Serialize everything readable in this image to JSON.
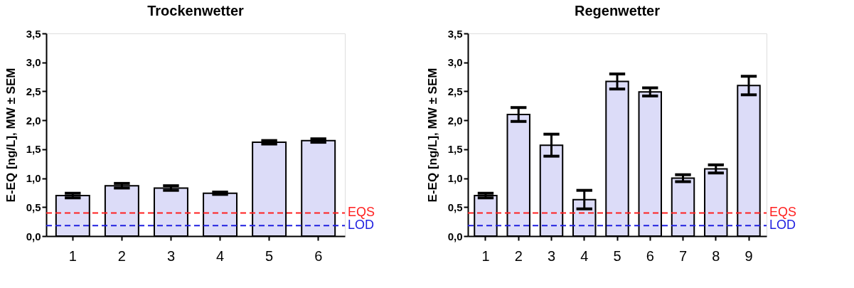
{
  "chart_data": [
    {
      "type": "bar",
      "title": "Trockenwetter",
      "ylabel": "E-EQ [ng/L], MW ± SEM",
      "categories": [
        "1",
        "2",
        "3",
        "4",
        "5",
        "6"
      ],
      "values": [
        0.7,
        0.87,
        0.83,
        0.74,
        1.62,
        1.65
      ],
      "errors": [
        0.04,
        0.04,
        0.04,
        0.02,
        0.03,
        0.03
      ],
      "color": "#dcdcf8",
      "ylim": [
        0,
        3.5
      ],
      "yticks": [
        {
          "value": 0,
          "label": "0,0"
        },
        {
          "value": 0.5,
          "label": "0,5"
        },
        {
          "value": 1,
          "label": "1,0"
        },
        {
          "value": 1.5,
          "label": "1,5"
        },
        {
          "value": 2,
          "label": "2,0"
        },
        {
          "value": 2.5,
          "label": "2,5"
        },
        {
          "value": 3,
          "label": "3,0"
        },
        {
          "value": 3.5,
          "label": "3,5"
        }
      ],
      "ref_lines": [
        {
          "axis": "y",
          "value": 0.4,
          "label": "EQS",
          "color": "#ff2020",
          "line_style": "dashed"
        },
        {
          "axis": "y",
          "value": 0.18,
          "label": "LOD",
          "color": "#2020e0",
          "line_style": "dashed"
        }
      ],
      "grid": false
    },
    {
      "type": "bar",
      "title": "Regenwetter",
      "ylabel": "E-EQ [ng/L], MW ± SEM",
      "categories": [
        "1",
        "2",
        "3",
        "4",
        "5",
        "6",
        "7",
        "8",
        "9"
      ],
      "values": [
        0.7,
        2.1,
        1.57,
        0.63,
        2.67,
        2.49,
        1.0,
        1.16,
        2.6
      ],
      "errors": [
        0.04,
        0.12,
        0.19,
        0.16,
        0.13,
        0.07,
        0.06,
        0.07,
        0.16
      ],
      "color": "#dcdcf8",
      "ylim": [
        0,
        3.5
      ],
      "yticks": [
        {
          "value": 0,
          "label": "0,0"
        },
        {
          "value": 0.5,
          "label": "0,5"
        },
        {
          "value": 1,
          "label": "1,0"
        },
        {
          "value": 1.5,
          "label": "1,5"
        },
        {
          "value": 2,
          "label": "2,0"
        },
        {
          "value": 2.5,
          "label": "2,5"
        },
        {
          "value": 3,
          "label": "3,0"
        },
        {
          "value": 3.5,
          "label": "3,5"
        }
      ],
      "ref_lines": [
        {
          "axis": "y",
          "value": 0.4,
          "label": "EQS",
          "color": "#ff2020",
          "line_style": "dashed"
        },
        {
          "axis": "y",
          "value": 0.18,
          "label": "LOD",
          "color": "#2020e0",
          "line_style": "dashed"
        }
      ],
      "grid": false
    }
  ]
}
